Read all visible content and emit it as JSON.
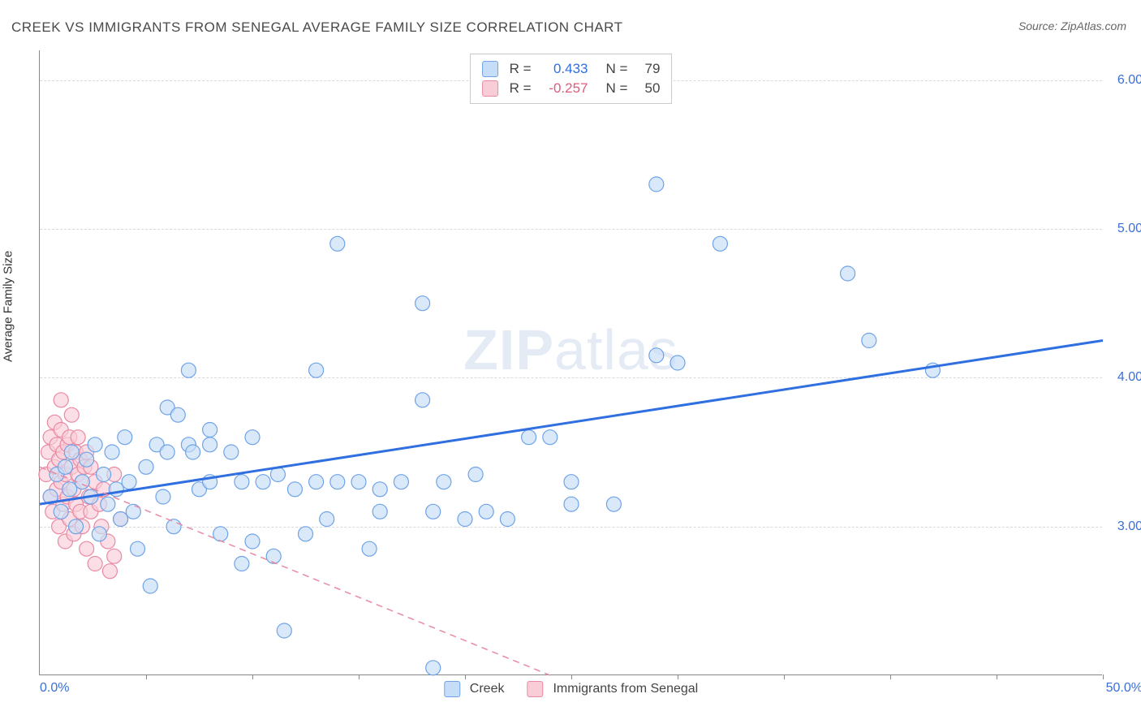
{
  "title": "CREEK VS IMMIGRANTS FROM SENEGAL AVERAGE FAMILY SIZE CORRELATION CHART",
  "source": "Source: ZipAtlas.com",
  "watermark": {
    "part1": "ZIP",
    "part2": "atlas"
  },
  "chart": {
    "type": "scatter",
    "ylabel": "Average Family Size",
    "xlim": [
      0,
      50
    ],
    "ylim": [
      2.0,
      6.2
    ],
    "x_tick_positions": [
      0,
      5,
      10,
      15,
      20,
      25,
      30,
      35,
      40,
      45,
      50
    ],
    "x_start_label": "0.0%",
    "x_end_label": "50.0%",
    "y_ticks": [
      3.0,
      4.0,
      5.0,
      6.0
    ],
    "y_tick_labels": [
      "3.00",
      "4.00",
      "5.00",
      "6.00"
    ],
    "grid_color": "#d9d9d9",
    "background_color": "#ffffff",
    "axis_color": "#888888",
    "marker_radius": 9,
    "marker_stroke_width": 1.2,
    "label_fontsize": 15,
    "tick_fontsize": 16,
    "tick_color": "#3b6fd6",
    "series": [
      {
        "name": "Creek",
        "fill": "#c6ddf7",
        "stroke": "#6ea3e8",
        "fill_opacity": 0.65,
        "trend": {
          "type": "solid",
          "color": "#2f6fe0",
          "width": 3,
          "x1": 0,
          "y1": 3.15,
          "x2": 50,
          "y2": 4.25
        },
        "points": [
          [
            0.5,
            3.2
          ],
          [
            0.8,
            3.35
          ],
          [
            1.0,
            3.1
          ],
          [
            1.2,
            3.4
          ],
          [
            1.4,
            3.25
          ],
          [
            1.5,
            3.5
          ],
          [
            1.7,
            3.0
          ],
          [
            2.0,
            3.3
          ],
          [
            2.2,
            3.45
          ],
          [
            2.4,
            3.2
          ],
          [
            2.6,
            3.55
          ],
          [
            2.8,
            2.95
          ],
          [
            3.0,
            3.35
          ],
          [
            3.2,
            3.15
          ],
          [
            3.4,
            3.5
          ],
          [
            3.6,
            3.25
          ],
          [
            3.8,
            3.05
          ],
          [
            4.0,
            3.6
          ],
          [
            4.2,
            3.3
          ],
          [
            4.4,
            3.1
          ],
          [
            4.6,
            2.85
          ],
          [
            5.0,
            3.4
          ],
          [
            5.2,
            2.6
          ],
          [
            5.5,
            3.55
          ],
          [
            5.8,
            3.2
          ],
          [
            6.0,
            3.8
          ],
          [
            6.0,
            3.5
          ],
          [
            6.3,
            3.0
          ],
          [
            6.5,
            3.75
          ],
          [
            7.0,
            3.55
          ],
          [
            7.0,
            4.05
          ],
          [
            7.2,
            3.5
          ],
          [
            7.5,
            3.25
          ],
          [
            8.0,
            3.65
          ],
          [
            8.0,
            3.3
          ],
          [
            8.0,
            3.55
          ],
          [
            8.5,
            2.95
          ],
          [
            9.0,
            3.5
          ],
          [
            9.5,
            2.75
          ],
          [
            9.5,
            3.3
          ],
          [
            10.0,
            3.6
          ],
          [
            10.0,
            2.9
          ],
          [
            10.5,
            3.3
          ],
          [
            11.0,
            2.8
          ],
          [
            11.2,
            3.35
          ],
          [
            11.5,
            2.3
          ],
          [
            12.0,
            3.25
          ],
          [
            12.5,
            2.95
          ],
          [
            13.0,
            3.3
          ],
          [
            13.0,
            4.05
          ],
          [
            13.5,
            3.05
          ],
          [
            14.0,
            3.3
          ],
          [
            14.0,
            4.9
          ],
          [
            15.0,
            3.3
          ],
          [
            15.5,
            2.85
          ],
          [
            16.0,
            3.25
          ],
          [
            16.0,
            3.1
          ],
          [
            17.0,
            3.3
          ],
          [
            18.0,
            4.5
          ],
          [
            18.0,
            3.85
          ],
          [
            18.5,
            3.1
          ],
          [
            18.5,
            2.05
          ],
          [
            19.0,
            3.3
          ],
          [
            20.0,
            3.05
          ],
          [
            20.5,
            3.35
          ],
          [
            21.0,
            3.1
          ],
          [
            22.0,
            3.05
          ],
          [
            23.0,
            3.6
          ],
          [
            24.0,
            3.6
          ],
          [
            25.0,
            3.3
          ],
          [
            25.0,
            3.15
          ],
          [
            27.0,
            3.15
          ],
          [
            29.0,
            4.15
          ],
          [
            29.0,
            5.3
          ],
          [
            30.0,
            4.1
          ],
          [
            32.0,
            4.9
          ],
          [
            38.0,
            4.7
          ],
          [
            39.0,
            4.25
          ],
          [
            42.0,
            4.05
          ]
        ]
      },
      {
        "name": "Immigrants from Senegal",
        "fill": "#f9cdd8",
        "stroke": "#e98aa2",
        "fill_opacity": 0.65,
        "trend": {
          "type": "dashed",
          "color": "#e98aa2",
          "width": 1.5,
          "x1": 0,
          "y1": 3.4,
          "x2": 24,
          "y2": 2.0
        },
        "points": [
          [
            0.3,
            3.35
          ],
          [
            0.4,
            3.5
          ],
          [
            0.5,
            3.2
          ],
          [
            0.5,
            3.6
          ],
          [
            0.6,
            3.1
          ],
          [
            0.7,
            3.4
          ],
          [
            0.7,
            3.7
          ],
          [
            0.8,
            3.55
          ],
          [
            0.8,
            3.25
          ],
          [
            0.9,
            3.0
          ],
          [
            0.9,
            3.45
          ],
          [
            1.0,
            3.3
          ],
          [
            1.0,
            3.65
          ],
          [
            1.0,
            3.85
          ],
          [
            1.1,
            3.15
          ],
          [
            1.1,
            3.5
          ],
          [
            1.2,
            3.35
          ],
          [
            1.2,
            2.9
          ],
          [
            1.3,
            3.55
          ],
          [
            1.3,
            3.2
          ],
          [
            1.4,
            3.6
          ],
          [
            1.4,
            3.05
          ],
          [
            1.5,
            3.4
          ],
          [
            1.5,
            3.75
          ],
          [
            1.6,
            3.25
          ],
          [
            1.6,
            2.95
          ],
          [
            1.7,
            3.5
          ],
          [
            1.7,
            3.15
          ],
          [
            1.8,
            3.35
          ],
          [
            1.8,
            3.6
          ],
          [
            1.9,
            3.1
          ],
          [
            1.9,
            3.45
          ],
          [
            2.0,
            3.3
          ],
          [
            2.0,
            3.0
          ],
          [
            2.1,
            3.4
          ],
          [
            2.2,
            2.85
          ],
          [
            2.2,
            3.5
          ],
          [
            2.3,
            3.2
          ],
          [
            2.4,
            3.1
          ],
          [
            2.4,
            3.4
          ],
          [
            2.6,
            2.75
          ],
          [
            2.6,
            3.3
          ],
          [
            2.8,
            3.15
          ],
          [
            2.9,
            3.0
          ],
          [
            3.0,
            3.25
          ],
          [
            3.2,
            2.9
          ],
          [
            3.3,
            2.7
          ],
          [
            3.5,
            3.35
          ],
          [
            3.5,
            2.8
          ],
          [
            3.8,
            3.05
          ]
        ]
      }
    ]
  },
  "legend_top": {
    "rows": [
      {
        "swatch_fill": "#c6ddf7",
        "swatch_stroke": "#6ea3e8",
        "r_label": "R =",
        "r_value": "0.433",
        "r_class": "val-blue",
        "n_label": "N =",
        "n_value": "79"
      },
      {
        "swatch_fill": "#f9cdd8",
        "swatch_stroke": "#e98aa2",
        "r_label": "R =",
        "r_value": "-0.257",
        "r_class": "val-pink",
        "n_label": "N =",
        "n_value": "50"
      }
    ]
  },
  "legend_bottom": {
    "items": [
      {
        "swatch_fill": "#c6ddf7",
        "swatch_stroke": "#6ea3e8",
        "label": "Creek"
      },
      {
        "swatch_fill": "#f9cdd8",
        "swatch_stroke": "#e98aa2",
        "label": "Immigrants from Senegal"
      }
    ]
  }
}
